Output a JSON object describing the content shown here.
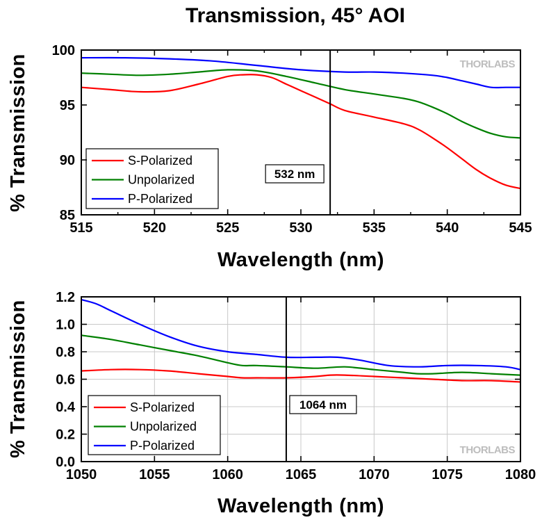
{
  "figure": {
    "title": "Transmission, 45° AOI",
    "logo": "THORLABS"
  },
  "chart_data": [
    {
      "type": "line",
      "xlabel": "Wavelength (nm)",
      "ylabel": "% Transmission",
      "xlim": [
        515,
        545
      ],
      "ylim": [
        85,
        100
      ],
      "xticks": [
        515,
        520,
        525,
        530,
        535,
        540,
        545
      ],
      "yticks": [
        85,
        90,
        95,
        100
      ],
      "xtick_labels": [
        "515",
        "520",
        "525",
        "530",
        "535",
        "540",
        "545"
      ],
      "ytick_labels": [
        "85",
        "90",
        "95",
        "100"
      ],
      "grid": false,
      "legend_position": "bottom-left",
      "annotation": {
        "x": 532,
        "label": "532 nm"
      },
      "series": [
        {
          "name": "S-Polarized",
          "color": "#ff0000",
          "x": [
            515,
            517,
            519,
            521,
            523,
            525,
            526,
            527,
            528,
            529,
            530,
            531,
            532,
            533,
            535,
            537,
            538,
            539,
            540,
            541,
            542,
            543,
            544,
            545
          ],
          "y": [
            96.6,
            96.4,
            96.2,
            96.3,
            96.9,
            97.6,
            97.75,
            97.75,
            97.5,
            96.9,
            96.3,
            95.7,
            95.1,
            94.5,
            93.9,
            93.3,
            92.8,
            92.0,
            91.1,
            90.1,
            89.1,
            88.3,
            87.7,
            87.4
          ]
        },
        {
          "name": "Unpolarized",
          "color": "#008000",
          "x": [
            515,
            517,
            519,
            521,
            523,
            525,
            527,
            529,
            531,
            533,
            535,
            537,
            538,
            539,
            540,
            541,
            542,
            543,
            544,
            545
          ],
          "y": [
            97.9,
            97.8,
            97.7,
            97.8,
            98.0,
            98.2,
            98.1,
            97.6,
            97.0,
            96.4,
            96.0,
            95.6,
            95.3,
            94.8,
            94.2,
            93.5,
            92.9,
            92.4,
            92.1,
            92.0
          ]
        },
        {
          "name": "P-Polarized",
          "color": "#0000ff",
          "x": [
            515,
            518,
            521,
            524,
            527,
            530,
            533,
            535,
            537,
            539,
            540,
            541,
            542,
            543,
            544,
            545
          ],
          "y": [
            99.3,
            99.3,
            99.2,
            99.0,
            98.6,
            98.2,
            98.0,
            98.0,
            97.9,
            97.7,
            97.5,
            97.2,
            96.9,
            96.6,
            96.6,
            96.6
          ]
        }
      ]
    },
    {
      "type": "line",
      "xlabel": "Wavelength (nm)",
      "ylabel": "% Transmission",
      "xlim": [
        1050,
        1080
      ],
      "ylim": [
        0,
        1.2
      ],
      "xticks": [
        1050,
        1055,
        1060,
        1065,
        1070,
        1075,
        1080
      ],
      "yticks": [
        0.0,
        0.2,
        0.4,
        0.6,
        0.8,
        1.0,
        1.2
      ],
      "xtick_labels": [
        "1050",
        "1055",
        "1060",
        "1065",
        "1070",
        "1075",
        "1080"
      ],
      "ytick_labels": [
        "0.0",
        "0.2",
        "0.4",
        "0.6",
        "0.8",
        "1.0",
        "1.2"
      ],
      "grid": true,
      "legend_position": "bottom-left",
      "annotation": {
        "x": 1064,
        "label": "1064 nm"
      },
      "series": [
        {
          "name": "S-Polarized",
          "color": "#ff0000",
          "x": [
            1050,
            1052,
            1054,
            1056,
            1058,
            1060,
            1061,
            1062,
            1064,
            1066,
            1067,
            1068,
            1070,
            1072,
            1074,
            1076,
            1078,
            1080
          ],
          "y": [
            0.66,
            0.67,
            0.67,
            0.66,
            0.64,
            0.62,
            0.61,
            0.61,
            0.61,
            0.62,
            0.63,
            0.63,
            0.62,
            0.61,
            0.6,
            0.59,
            0.59,
            0.58
          ]
        },
        {
          "name": "Unpolarized",
          "color": "#008000",
          "x": [
            1050,
            1052,
            1054,
            1056,
            1058,
            1060,
            1061,
            1062,
            1064,
            1066,
            1068,
            1070,
            1072,
            1073,
            1074,
            1076,
            1078,
            1080
          ],
          "y": [
            0.92,
            0.89,
            0.85,
            0.81,
            0.77,
            0.72,
            0.7,
            0.7,
            0.69,
            0.68,
            0.69,
            0.67,
            0.65,
            0.64,
            0.64,
            0.65,
            0.64,
            0.63
          ]
        },
        {
          "name": "P-Polarized",
          "color": "#0000ff",
          "x": [
            1050,
            1051,
            1052,
            1054,
            1056,
            1058,
            1060,
            1062,
            1064,
            1066,
            1067.5,
            1069,
            1071,
            1073,
            1075,
            1077,
            1079,
            1080
          ],
          "y": [
            1.18,
            1.15,
            1.1,
            1.0,
            0.91,
            0.84,
            0.8,
            0.78,
            0.76,
            0.76,
            0.76,
            0.74,
            0.7,
            0.69,
            0.7,
            0.7,
            0.69,
            0.67
          ]
        }
      ]
    }
  ]
}
